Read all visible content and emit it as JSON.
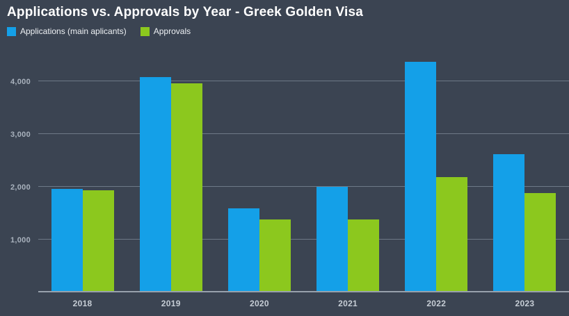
{
  "title": "Applications vs. Approvals by Year - Greek Golden Visa",
  "legend": {
    "applications_label": "Applications (main aplicants)",
    "approvals_label": "Approvals"
  },
  "colors": {
    "background": "#3b4452",
    "applications": "#14a0e8",
    "approvals": "#8cc81e",
    "gridline": "#6e7987",
    "title_text": "#ffffff",
    "axis_text": "#a9b2bd"
  },
  "chart_data": {
    "type": "bar",
    "title": "Applications vs. Approvals by Year - Greek Golden Visa",
    "categories": [
      "2018",
      "2019",
      "2020",
      "2021",
      "2022",
      "2023"
    ],
    "series": [
      {
        "name": "Applications (main aplicants)",
        "color": "#14a0e8",
        "values": [
          1960,
          4075,
          1590,
          2000,
          4370,
          2615
        ]
      },
      {
        "name": "Approvals",
        "color": "#8cc81e",
        "values": [
          1935,
          3960,
          1385,
          1385,
          2180,
          1885
        ]
      }
    ],
    "xlabel": "",
    "ylabel": "",
    "yticks": [
      1000,
      2000,
      3000,
      4000
    ],
    "ylim": [
      0,
      4590
    ],
    "grid": true,
    "legend_position": "top-left"
  }
}
